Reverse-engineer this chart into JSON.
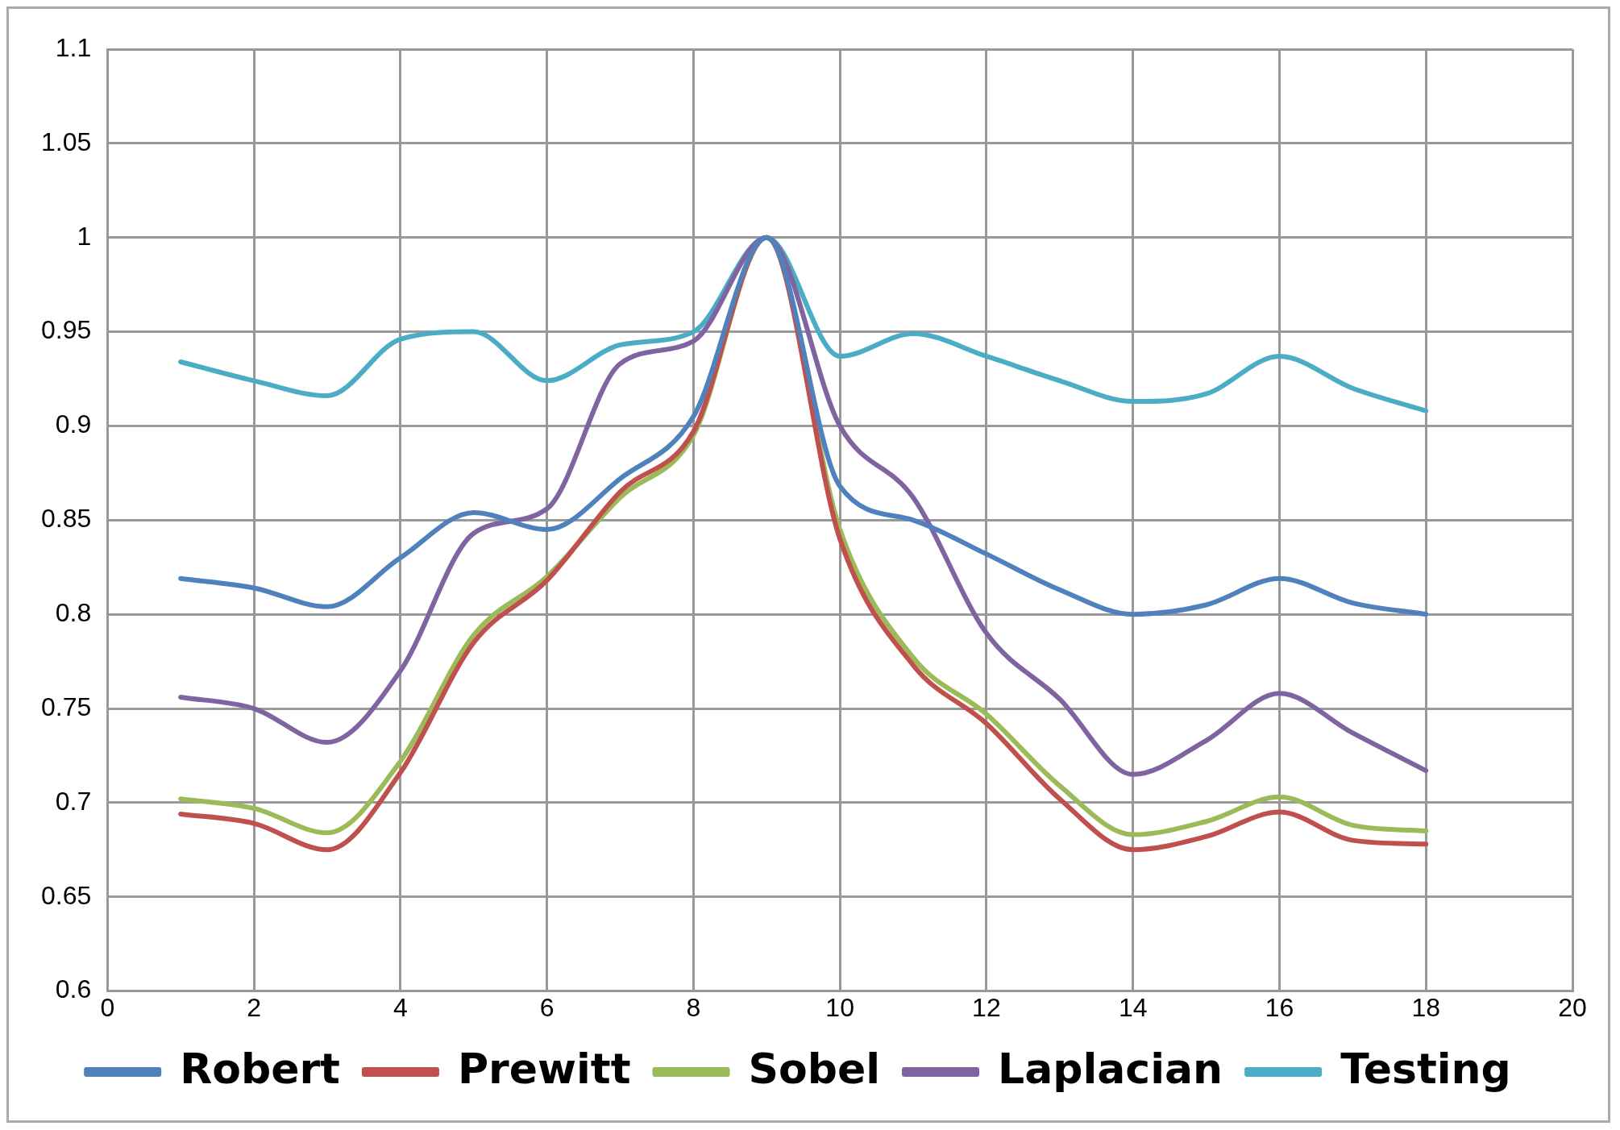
{
  "chart_data": {
    "type": "line",
    "x": [
      1,
      2,
      3,
      4,
      5,
      6,
      7,
      8,
      9,
      10,
      11,
      12,
      13,
      14,
      15,
      16,
      17,
      18
    ],
    "series": [
      {
        "name": "Robert",
        "color": "#4f81bd",
        "values": [
          0.819,
          0.814,
          0.804,
          0.83,
          0.854,
          0.845,
          0.872,
          0.905,
          1.0,
          0.868,
          0.85,
          0.832,
          0.813,
          0.8,
          0.805,
          0.819,
          0.806,
          0.8
        ]
      },
      {
        "name": "Prewitt",
        "color": "#c0504d",
        "values": [
          0.694,
          0.689,
          0.675,
          0.716,
          0.785,
          0.818,
          0.865,
          0.897,
          1.0,
          0.84,
          0.773,
          0.742,
          0.702,
          0.675,
          0.682,
          0.695,
          0.68,
          0.678
        ]
      },
      {
        "name": "Sobel",
        "color": "#9bbb59",
        "values": [
          0.702,
          0.697,
          0.684,
          0.722,
          0.789,
          0.82,
          0.862,
          0.895,
          1.0,
          0.845,
          0.777,
          0.747,
          0.709,
          0.683,
          0.69,
          0.703,
          0.688,
          0.685
        ]
      },
      {
        "name": "Laplacian",
        "color": "#8064a2",
        "values": [
          0.756,
          0.75,
          0.732,
          0.77,
          0.843,
          0.856,
          0.933,
          0.945,
          1.0,
          0.9,
          0.862,
          0.79,
          0.755,
          0.715,
          0.733,
          0.758,
          0.737,
          0.717
        ]
      },
      {
        "name": "Testing",
        "color": "#4bacc6",
        "values": [
          0.934,
          0.924,
          0.916,
          0.946,
          0.95,
          0.924,
          0.943,
          0.95,
          1.0,
          0.937,
          0.949,
          0.937,
          0.924,
          0.913,
          0.917,
          0.937,
          0.92,
          0.908
        ]
      }
    ],
    "xlim": [
      0,
      20
    ],
    "xticks": [
      0,
      2,
      4,
      6,
      8,
      10,
      12,
      14,
      16,
      18,
      20
    ],
    "ylim": [
      0.6,
      1.1
    ],
    "yticks": [
      0.6,
      0.65,
      0.7,
      0.75,
      0.8,
      0.85,
      0.9,
      0.95,
      1,
      1.05,
      1.1
    ],
    "grid": true,
    "legend": "bottom",
    "marker": "none",
    "line_style": "solid"
  }
}
